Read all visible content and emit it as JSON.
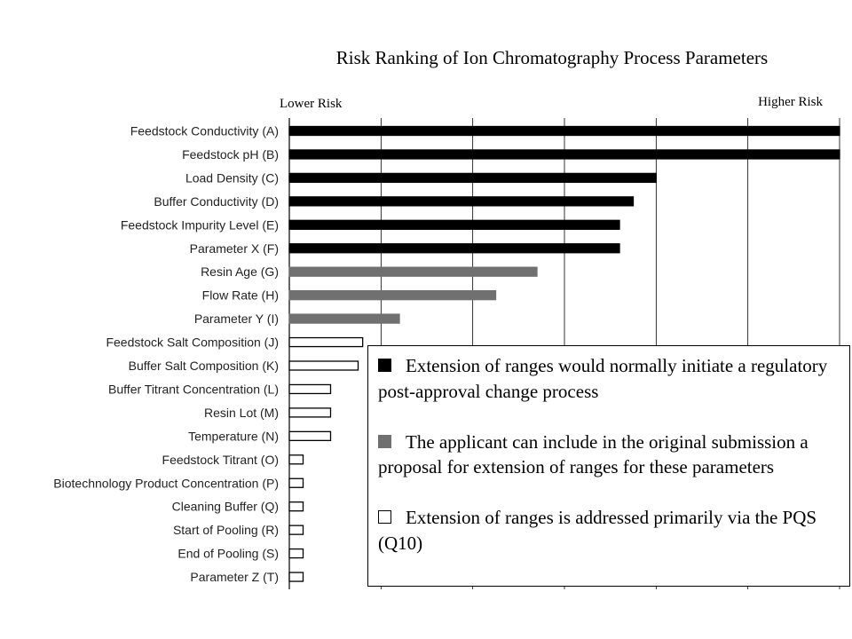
{
  "chart_data": {
    "type": "bar",
    "orientation": "horizontal",
    "title": "Risk Ranking of Ion Chromatography Process Parameters",
    "axis_low_label": "Lower Risk",
    "axis_high_label": "Higher Risk",
    "grid": true,
    "xlim": [
      0,
      6
    ],
    "categories": [
      "Feedstock Conductivity (A)",
      "Feedstock pH (B)",
      "Load Density (C)",
      "Buffer Conductivity (D)",
      "Feedstock Impurity Level (E)",
      "Parameter X (F)",
      "Resin Age (G)",
      "Flow Rate (H)",
      "Parameter Y (I)",
      "Feedstock Salt Composition (J)",
      "Buffer Salt Composition (K)",
      "Buffer Titrant Concentration (L)",
      "Resin Lot (M)",
      "Temperature (N)",
      "Feedstock Titrant (O)",
      "Biotechnology Product Concentration (P)",
      "Cleaning Buffer (Q)",
      "Start of Pooling (R)",
      "End of Pooling (S)",
      "Parameter Z (T)"
    ],
    "values": [
      6.0,
      6.0,
      4.0,
      3.75,
      3.6,
      3.6,
      2.7,
      2.25,
      1.2,
      0.8,
      0.75,
      0.45,
      0.45,
      0.45,
      0.15,
      0.15,
      0.15,
      0.15,
      0.15,
      0.15
    ],
    "risk_class": [
      0,
      0,
      0,
      0,
      0,
      0,
      1,
      1,
      1,
      2,
      2,
      2,
      2,
      2,
      2,
      2,
      2,
      2,
      2,
      2
    ],
    "legend_position": "bottom-right"
  },
  "legend": {
    "items": [
      {
        "text": "Extension of ranges would normally initiate a regulatory post-approval change process",
        "fill": "#000000",
        "border": "#000000"
      },
      {
        "text": "The applicant can include in the original submission a proposal for extension of ranges for these parameters",
        "fill": "#707070",
        "border": "#707070"
      },
      {
        "text": "Extension of ranges is addressed primarily via the PQS (Q10)",
        "fill": "#ffffff",
        "border": "#000000"
      }
    ]
  },
  "colors": {
    "high": "#000000",
    "medium": "#707070",
    "low_fill": "#ffffff",
    "low_border": "#000000",
    "grid": "#000000"
  }
}
